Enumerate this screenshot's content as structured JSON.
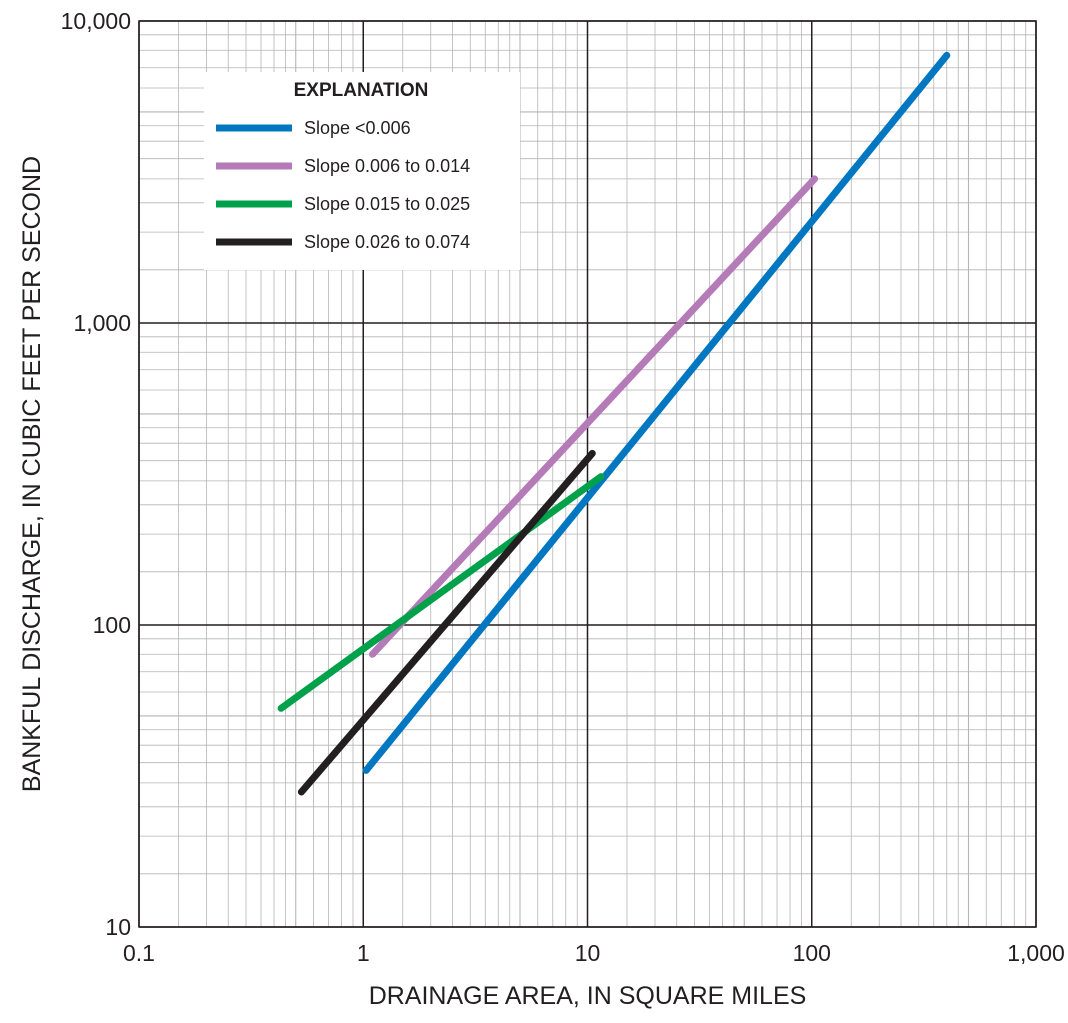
{
  "chart_data": {
    "type": "line",
    "x_scale": "log",
    "y_scale": "log",
    "xlim": [
      0.1,
      1000
    ],
    "ylim": [
      10,
      10000
    ],
    "grid": true,
    "xlabel": "DRAINAGE AREA, IN SQUARE MILES",
    "ylabel": "BANKFUL DISCHARGE, IN CUBIC FEET PER SECOND",
    "x_ticks": [
      {
        "value": 0.1,
        "label": "0.1"
      },
      {
        "value": 1,
        "label": "1"
      },
      {
        "value": 10,
        "label": "10"
      },
      {
        "value": 100,
        "label": "100"
      },
      {
        "value": 1000,
        "label": "1,000"
      }
    ],
    "y_ticks": [
      {
        "value": 10,
        "label": "10"
      },
      {
        "value": 100,
        "label": "100"
      },
      {
        "value": 1000,
        "label": "1,000"
      },
      {
        "value": 10000,
        "label": "10,000"
      }
    ],
    "legend": {
      "title": "EXPLANATION",
      "position": "top-left"
    },
    "series": [
      {
        "name": "Slope <0.006",
        "color": "#0077c0",
        "x": [
          1.03,
          400
        ],
        "y": [
          33,
          7700
        ]
      },
      {
        "name": "Slope 0.006 to 0.014",
        "color": "#b57ab8",
        "x": [
          1.1,
          103
        ],
        "y": [
          80,
          3000
        ]
      },
      {
        "name": "Slope 0.015 to 0.025",
        "color": "#00a14b",
        "x": [
          0.43,
          11.5
        ],
        "y": [
          53,
          310
        ]
      },
      {
        "name": "Slope 0.026 to 0.074",
        "color": "#231f20",
        "x": [
          0.53,
          10.5
        ],
        "y": [
          28,
          370
        ]
      }
    ]
  }
}
